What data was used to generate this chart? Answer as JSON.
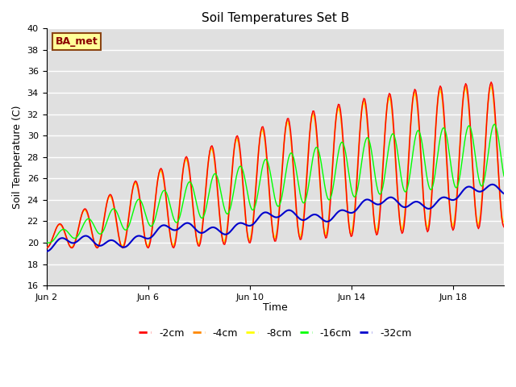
{
  "title": "Soil Temperatures Set B",
  "ylabel": "Soil Temperature (C)",
  "xlabel": "Time",
  "annotation": "BA_met",
  "ylim": [
    16,
    40
  ],
  "yticks": [
    16,
    18,
    20,
    22,
    24,
    26,
    28,
    30,
    32,
    34,
    36,
    38,
    40
  ],
  "xtick_labels": [
    "Jun 2",
    "Jun 6",
    "Jun 10",
    "Jun 14",
    "Jun 18"
  ],
  "xtick_positions": [
    0,
    4,
    8,
    12,
    16
  ],
  "xlim": [
    0,
    18
  ],
  "bg_color": "#e0e0e0",
  "grid_color": "#ffffff",
  "colors": {
    "-2cm": "#ff0000",
    "-4cm": "#ff8800",
    "-8cm": "#ffff00",
    "-16cm": "#00ff00",
    "-32cm": "#0000cc"
  },
  "legend_labels": [
    "-2cm",
    "-4cm",
    "-8cm",
    "-16cm",
    "-32cm"
  ],
  "line_width": 1.0
}
